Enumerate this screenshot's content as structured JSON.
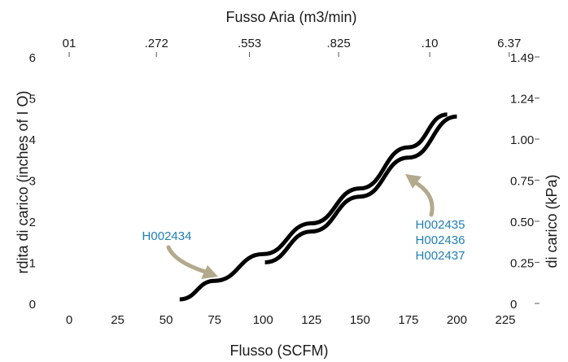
{
  "chart_data": {
    "type": "line",
    "title": "",
    "xlabel": "Flusso (SCFM)",
    "ylabel": "rdita di carico   (inches of    I O)",
    "top_xlabel": "Fusso Aria (m3/min)",
    "right_ylabel": "di carico (kPa)",
    "xlim": [
      0,
      225
    ],
    "ylim": [
      0,
      6
    ],
    "x_ticks": [
      "0",
      "25",
      "50",
      "75",
      "100",
      "125",
      "150",
      "175",
      "200",
      "225"
    ],
    "y_ticks": [
      "0",
      "1",
      "2",
      "3",
      "4",
      "5",
      "6"
    ],
    "top_ticks": [
      {
        "label": "01",
        "x": 0
      },
      {
        "label": ".272",
        "x": 45
      },
      {
        "label": ".553",
        "x": 93
      },
      {
        "label": ".825",
        "x": 139
      },
      {
        "label": ".10",
        "x": 186
      },
      {
        "label": "6.37",
        "x": 227
      }
    ],
    "right_ticks": [
      {
        "label": "0",
        "y": 0
      },
      {
        "label": "0.25",
        "y": 1
      },
      {
        "label": "0.50",
        "y": 2
      },
      {
        "label": "0.75",
        "y": 3
      },
      {
        "label": "1.00",
        "y": 4
      },
      {
        "label": "1.24",
        "y": 5
      },
      {
        "label": "1.49",
        "y": 6
      }
    ],
    "series": [
      {
        "name": "H002434",
        "color": "#000000",
        "x": [
          57,
          75,
          100,
          125,
          150,
          175,
          195
        ],
        "y": [
          0.1,
          0.55,
          1.2,
          1.95,
          2.8,
          3.8,
          4.6
        ]
      },
      {
        "name": "H002435 H002436 H002437",
        "color": "#000000",
        "x": [
          101,
          125,
          150,
          175,
          200
        ],
        "y": [
          1.0,
          1.75,
          2.6,
          3.55,
          4.55
        ]
      }
    ],
    "annotations": [
      {
        "lines": [
          "H002434"
        ],
        "color": "#1f7fb8",
        "arrow_color": "#b3a98d"
      },
      {
        "lines": [
          "H002435",
          "H002436",
          "H002437"
        ],
        "color": "#1f7fb8",
        "arrow_color": "#b3a98d"
      }
    ]
  }
}
